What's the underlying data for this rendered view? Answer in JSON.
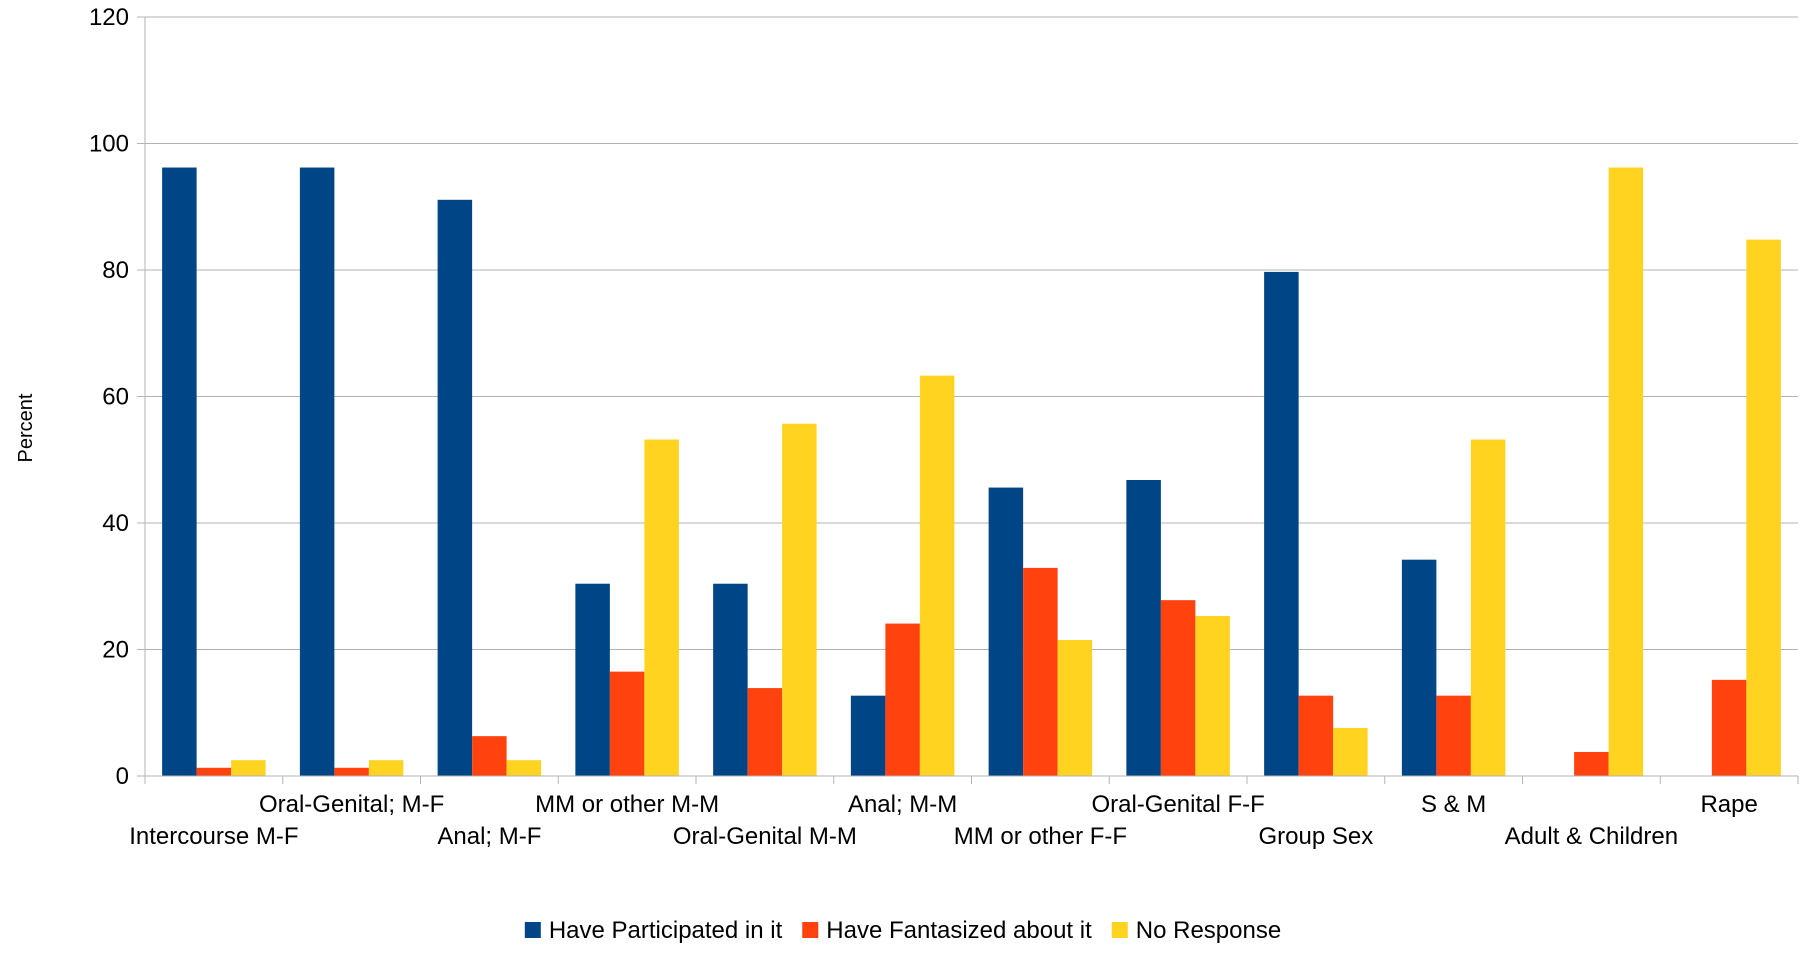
{
  "chart_data": {
    "type": "bar",
    "ylabel": "Percent",
    "xlabel": "",
    "ylim": [
      0,
      120
    ],
    "yticks": [
      0,
      20,
      40,
      60,
      80,
      100,
      120
    ],
    "grid": true,
    "legend_position": "bottom",
    "categories": [
      "Intercourse M-F",
      "Oral-Genital; M-F",
      "Anal; M-F",
      "MM or other M-M",
      "Oral-Genital M-M",
      "Anal; M-M",
      "MM or other F-F",
      "Oral-Genital F-F",
      "Group Sex",
      "S & M",
      "Adult & Children",
      "Rape"
    ],
    "series": [
      {
        "name": "Have Participated in it",
        "color": "#004586",
        "values": [
          96.2,
          96.2,
          91.1,
          30.4,
          30.4,
          12.7,
          45.6,
          46.8,
          79.7,
          34.2,
          0,
          0
        ]
      },
      {
        "name": "Have Fantasized about it",
        "color": "#ff420e",
        "values": [
          1.3,
          1.3,
          6.3,
          16.5,
          13.9,
          24.1,
          32.9,
          27.8,
          12.7,
          12.7,
          3.8,
          15.2
        ]
      },
      {
        "name": "No Response",
        "color": "#ffd320",
        "values": [
          2.5,
          2.5,
          2.5,
          53.2,
          55.7,
          63.3,
          21.5,
          25.3,
          7.6,
          53.2,
          96.2,
          84.8
        ]
      }
    ]
  }
}
